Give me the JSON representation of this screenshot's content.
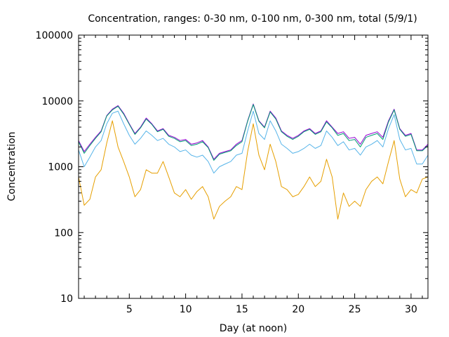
{
  "chart_data": {
    "type": "line",
    "title": "Concentration, ranges: 0-30 nm, 0-100 nm, 0-300 nm, total (5/9/1)",
    "xlabel": "Day (at noon)",
    "ylabel": "Concentration",
    "xlim": [
      0.5,
      31.5
    ],
    "ylim": [
      10,
      100000
    ],
    "yscale": "log",
    "grid": false,
    "legend": "none",
    "x_ticks": [
      5,
      10,
      15,
      20,
      25,
      30
    ],
    "x_tick_labels": [
      "5",
      "10",
      "15",
      "20",
      "25",
      "30"
    ],
    "y_ticks": [
      10,
      100,
      1000,
      10000,
      100000
    ],
    "y_tick_labels": [
      "10",
      "100",
      "1000",
      "10000",
      "100000"
    ],
    "x": [
      0.5,
      1.0,
      1.5,
      2.0,
      2.5,
      3.0,
      3.5,
      4.0,
      4.5,
      5.0,
      5.5,
      6.0,
      6.5,
      7.0,
      7.5,
      8.0,
      8.5,
      9.0,
      9.5,
      10.0,
      10.5,
      11.0,
      11.5,
      12.0,
      12.5,
      13.0,
      13.5,
      14.0,
      14.5,
      15.0,
      15.5,
      16.0,
      16.5,
      17.0,
      17.5,
      18.0,
      18.5,
      19.0,
      19.5,
      20.0,
      20.5,
      21.0,
      21.5,
      22.0,
      22.5,
      23.0,
      23.5,
      24.0,
      24.5,
      25.0,
      25.5,
      26.0,
      26.5,
      27.0,
      27.5,
      28.0,
      28.5,
      29.0,
      29.5,
      30.0,
      30.5,
      31.0,
      31.5
    ],
    "series": [
      {
        "color": "#9400d3",
        "values": [
          2500,
          1700,
          2200,
          2800,
          3500,
          6000,
          7500,
          8500,
          6500,
          4500,
          3200,
          4000,
          5500,
          4500,
          3500,
          3800,
          3000,
          2800,
          2500,
          2600,
          2200,
          2300,
          2500,
          2000,
          1300,
          1600,
          1700,
          1800,
          2200,
          2500,
          5000,
          9000,
          5000,
          4000,
          7000,
          5500,
          3500,
          3000,
          2700,
          3000,
          3500,
          3800,
          3200,
          3500,
          5000,
          4000,
          3200,
          3400,
          2700,
          2800,
          2200,
          3000,
          3200,
          3400,
          2800,
          5000,
          7500,
          3800,
          3000,
          3200,
          1800,
          1800,
          2200
        ]
      },
      {
        "color": "#009e73",
        "values": [
          2400,
          1600,
          2100,
          2700,
          3400,
          5900,
          7300,
          8300,
          6300,
          4400,
          3100,
          3900,
          5300,
          4400,
          3400,
          3700,
          2900,
          2700,
          2400,
          2500,
          2100,
          2200,
          2400,
          1950,
          1250,
          1550,
          1650,
          1750,
          2100,
          2400,
          4900,
          8800,
          4900,
          3900,
          6800,
          5300,
          3400,
          2900,
          2600,
          2900,
          3400,
          3700,
          3100,
          3400,
          4800,
          3900,
          3000,
          3200,
          2500,
          2600,
          2000,
          2800,
          3000,
          3200,
          2600,
          4800,
          7300,
          3700,
          2900,
          3100,
          1750,
          1750,
          2100
        ]
      },
      {
        "color": "#56b4e9",
        "values": [
          1800,
          1000,
          1400,
          2000,
          2500,
          4500,
          6500,
          7000,
          4500,
          3000,
          2200,
          2700,
          3500,
          3000,
          2500,
          2700,
          2200,
          2000,
          1700,
          1800,
          1500,
          1400,
          1500,
          1200,
          800,
          1000,
          1100,
          1200,
          1500,
          1600,
          3500,
          7000,
          3200,
          2600,
          5000,
          3500,
          2200,
          1900,
          1600,
          1700,
          1900,
          2200,
          1900,
          2100,
          3500,
          2800,
          2100,
          2400,
          1800,
          1900,
          1500,
          2000,
          2200,
          2500,
          2000,
          3800,
          6200,
          2600,
          1800,
          1900,
          1100,
          1100,
          1500
        ]
      },
      {
        "color": "#e69f00",
        "values": [
          700,
          260,
          320,
          700,
          900,
          2300,
          5000,
          2000,
          1200,
          700,
          350,
          450,
          900,
          800,
          800,
          1200,
          700,
          400,
          350,
          450,
          320,
          420,
          500,
          350,
          160,
          250,
          300,
          350,
          500,
          450,
          1700,
          4500,
          1500,
          900,
          2200,
          1200,
          500,
          450,
          350,
          380,
          500,
          700,
          500,
          600,
          1300,
          700,
          160,
          400,
          250,
          300,
          250,
          450,
          600,
          700,
          550,
          1200,
          2500,
          650,
          350,
          450,
          400,
          650,
          700
        ]
      }
    ]
  }
}
